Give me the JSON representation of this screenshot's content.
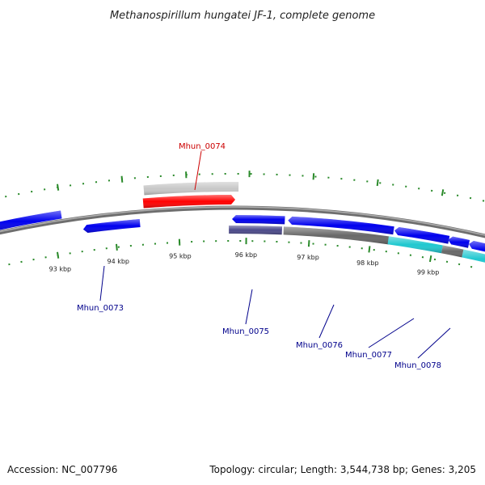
{
  "title": "Methanospirillum hungatei JF-1, complete genome",
  "footer": {
    "accession": "Accession: NC_007796",
    "summary": "Topology: circular; Length: 3,544,738 bp; Genes: 3,205"
  },
  "colors": {
    "backbone": "#8c8c8c",
    "tick": "#2a8a2a",
    "label_dark": "#00008b",
    "label_red": "#cc0000",
    "blue": "#0000ee",
    "red": "#ff0000",
    "light_gray": "#c8c8c8",
    "dark_gray": "#686868",
    "slate": "#4c4a8a",
    "cyan": "#20c8d0"
  },
  "scale": {
    "ticks": [
      {
        "label": "93 kbp"
      },
      {
        "label": "94 kbp"
      },
      {
        "label": "95 kbp"
      },
      {
        "label": "96 kbp"
      },
      {
        "label": "97 kbp"
      },
      {
        "label": "98 kbp"
      },
      {
        "label": "99 kbp"
      }
    ]
  },
  "gene_labels": [
    {
      "name": "Mhun_0074",
      "color": "label_red"
    },
    {
      "name": "Mhun_0073",
      "color": "label_dark"
    },
    {
      "name": "Mhun_0075",
      "color": "label_dark"
    },
    {
      "name": "Mhun_0076",
      "color": "label_dark"
    },
    {
      "name": "Mhun_0077",
      "color": "label_dark"
    },
    {
      "name": "Mhun_0078",
      "color": "label_dark"
    }
  ]
}
